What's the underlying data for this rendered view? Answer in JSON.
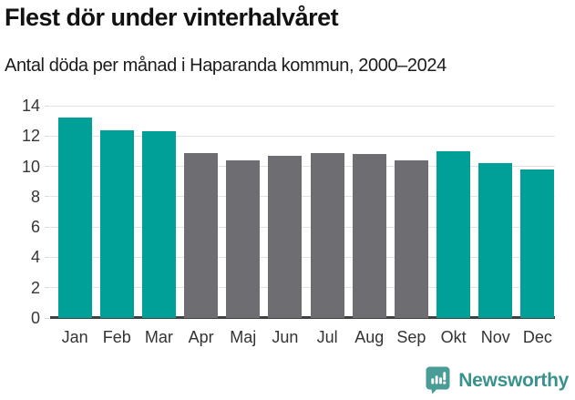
{
  "chart_data": {
    "type": "bar",
    "title": "Flest dör under vinterhalvåret",
    "subtitle": "Antal döda per månad i Haparanda kommun, 2000–2024",
    "categories": [
      "Jan",
      "Feb",
      "Mar",
      "Apr",
      "Maj",
      "Jun",
      "Jul",
      "Aug",
      "Sep",
      "Okt",
      "Nov",
      "Dec"
    ],
    "values": [
      13.2,
      12.4,
      12.3,
      10.9,
      10.4,
      10.7,
      10.85,
      10.8,
      10.4,
      11.0,
      10.2,
      9.8
    ],
    "highlighted": [
      true,
      true,
      true,
      false,
      false,
      false,
      false,
      false,
      false,
      true,
      true,
      true
    ],
    "xlabel": "",
    "ylabel": "",
    "ylim": [
      0,
      14
    ],
    "yticks": [
      0,
      2,
      4,
      6,
      8,
      10,
      12,
      14
    ],
    "grid": "horizontal",
    "legend": "none",
    "colors": {
      "highlight": "#00a099",
      "default": "#6e6d72",
      "gridline": "#e3e3e3",
      "tick": "#d9d9d9",
      "axis_line": "#404040",
      "y_label": "#363636",
      "x_label": "#333333"
    }
  },
  "footer": {
    "brand_name": "Newsworthy",
    "brand_color": "#3a928c",
    "logo_icon_color": "#4a9c96"
  }
}
